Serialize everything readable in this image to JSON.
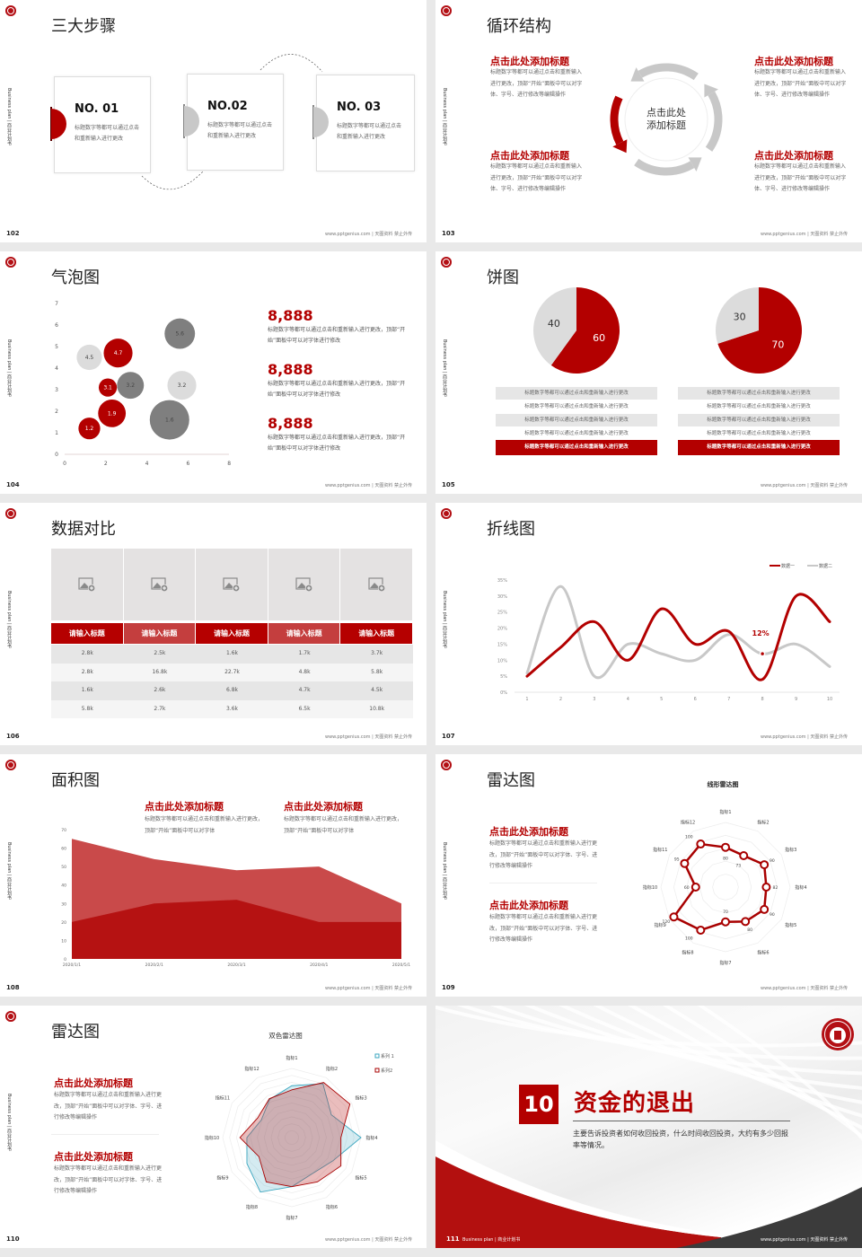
{
  "common": {
    "side_text": "Business plan | 商业计划书",
    "footer": "www.pptgenius.com | 天图资料 禁止外传",
    "logo_icon": "seal-logo",
    "colors": {
      "accent": "#b30000",
      "light_gray": "#dcdcdc",
      "gray": "#c8c8c8",
      "dark_gray": "#7f7f7f",
      "teal": "#3aa6bf",
      "area_light": "#c94a4a",
      "area_dark": "#b51212"
    }
  },
  "slides": {
    "s102": {
      "page": "102",
      "title": "三大步骤",
      "steps": [
        {
          "no": "NO. 01",
          "text": "标题数字等都可以通过点击和重新输入进行更改"
        },
        {
          "no": "NO.02",
          "text": "标题数字等都可以通过点击和重新输入进行更改"
        },
        {
          "no": "NO. 03",
          "text": "标题数字等都可以通过点击和重新输入进行更改"
        }
      ]
    },
    "s103": {
      "page": "103",
      "title": "循环结构",
      "center": "点击此处添加标题",
      "blocks": [
        {
          "heading": "点击此处添加标题",
          "text": "标题数字等都可以通过点击和重新输入进行更改，顶部“开始”面板中可以对字体、字号、进行修改等编辑操作"
        },
        {
          "heading": "点击此处添加标题",
          "text": "标题数字等都可以通过点击和重新输入进行更改，顶部“开始”面板中可以对字体、字号、进行修改等编辑操作"
        },
        {
          "heading": "点击此处添加标题",
          "text": "标题数字等都可以通过点击和重新输入进行更改，顶部“开始”面板中可以对字体、字号、进行修改等编辑操作"
        },
        {
          "heading": "点击此处添加标题",
          "text": "标题数字等都可以通过点击和重新输入进行更改，顶部“开始”面板中可以对字体、字号、进行修改等编辑操作"
        }
      ]
    },
    "s104": {
      "page": "104",
      "title": "气泡图",
      "stats": [
        {
          "value": "8,888",
          "text": "标题数字等都可以通过点击和重新输入进行更改，顶部“开始”面板中可以对字体进行修改"
        },
        {
          "value": "8,888",
          "text": "标题数字等都可以通过点击和重新输入进行更改，顶部“开始”面板中可以对字体进行修改"
        },
        {
          "value": "8,888",
          "text": "标题数字等都可以通过点击和重新输入进行更改，顶部“开始”面板中可以对字体进行修改"
        }
      ]
    },
    "s105": {
      "page": "105",
      "title": "饼图",
      "lists": [
        {
          "rows": [
            "标题数字等都可以通过点击和重新输入进行更改",
            "标题数字等都可以通过点击和重新输入进行更改",
            "标题数字等都可以通过点击和重新输入进行更改",
            "标题数字等都可以通过点击和重新输入进行更改"
          ],
          "highlight": "标题数字等都可以通过点击和重新输入进行更改"
        },
        {
          "rows": [
            "标题数字等都可以通过点击和重新输入进行更改",
            "标题数字等都可以通过点击和重新输入进行更改",
            "标题数字等都可以通过点击和重新输入进行更改",
            "标题数字等都可以通过点击和重新输入进行更改"
          ],
          "highlight": "标题数字等都可以通过点击和重新输入进行更改"
        }
      ]
    },
    "s106": {
      "page": "106",
      "title": "数据对比",
      "image_icon": "image-placeholder-icon",
      "headers": [
        "请输入标题",
        "请输入标题",
        "请输入标题",
        "请输入标题",
        "请输入标题"
      ],
      "rows": [
        [
          "2.8k",
          "2.5k",
          "1.6k",
          "1.7k",
          "3.7k"
        ],
        [
          "2.8k",
          "16.8k",
          "22.7k",
          "4.8k",
          "5.8k"
        ],
        [
          "1.6k",
          "2.6k",
          "6.8k",
          "4.7k",
          "4.5k"
        ],
        [
          "5.8k",
          "2.7k",
          "3.6k",
          "6.5k",
          "10.8k"
        ]
      ]
    },
    "s107": {
      "page": "107",
      "title": "折线图"
    },
    "s108": {
      "page": "108",
      "title": "面积图",
      "blocks": [
        {
          "heading": "点击此处添加标题",
          "text": "标题数字等都可以通过点击和重新输入进行更改，顶部“开始”面板中可以对字体"
        },
        {
          "heading": "点击此处添加标题",
          "text": "标题数字等都可以通过点击和重新输入进行更改，顶部“开始”面板中可以对字体"
        }
      ]
    },
    "s109": {
      "page": "109",
      "title": "雷达图",
      "blocks": [
        {
          "heading": "点击此处添加标题",
          "text": "标题数字等都可以通过点击和重新输入进行更改，顶部“开始”面板中可以对字体、字号、进行修改等编辑操作"
        },
        {
          "heading": "点击此处添加标题",
          "text": "标题数字等都可以通过点击和重新输入进行更改，顶部“开始”面板中可以对字体、字号、进行修改等编辑操作"
        }
      ]
    },
    "s110": {
      "page": "110",
      "title": "雷达图",
      "blocks": [
        {
          "heading": "点击此处添加标题",
          "text": "标题数字等都可以通过点击和重新输入进行更改，顶部“开始”面板中可以对字体、字号、进行修改等编辑操作"
        },
        {
          "heading": "点击此处添加标题",
          "text": "标题数字等都可以通过点击和重新输入进行更改，顶部“开始”面板中可以对字体、字号、进行修改等编辑操作"
        }
      ]
    },
    "s111": {
      "page": "111",
      "section_number": "10",
      "section_title": "资金的退出",
      "description": "主要告诉投资者如何收回投资，什么时间收回投资，大约有多少回报率等情况。"
    }
  },
  "chart_data": [
    {
      "slide": "104",
      "type": "scatter",
      "subtype": "bubble",
      "xlim": [
        0,
        8
      ],
      "ylim": [
        0,
        7
      ],
      "x_ticks": [
        "0",
        "2",
        "4",
        "6",
        "8"
      ],
      "y_ticks": [
        "0",
        "1",
        "2",
        "3",
        "4",
        "5",
        "6",
        "7"
      ],
      "points": [
        {
          "x": 1.2,
          "y": 1.2,
          "size": 5.5,
          "label": "1.2",
          "color": "red"
        },
        {
          "x": 2.3,
          "y": 1.9,
          "size": 7.0,
          "label": "1.9",
          "color": "red"
        },
        {
          "x": 2.1,
          "y": 3.1,
          "size": 4.6,
          "label": "3.1",
          "color": "red"
        },
        {
          "x": 2.6,
          "y": 4.7,
          "size": 7.3,
          "label": "4.7",
          "color": "red"
        },
        {
          "x": 1.2,
          "y": 4.5,
          "size": 6.4,
          "label": "4.5",
          "color": "light_gray"
        },
        {
          "x": 3.2,
          "y": 3.2,
          "size": 6.8,
          "label": "3.2",
          "color": "dark_gray"
        },
        {
          "x": 5.7,
          "y": 3.2,
          "size": 7.3,
          "label": "3.2",
          "color": "light_gray"
        },
        {
          "x": 5.6,
          "y": 5.6,
          "size": 7.7,
          "label": "5.6",
          "color": "dark_gray"
        },
        {
          "x": 5.1,
          "y": 1.6,
          "size": 10.0,
          "label": "1.6",
          "color": "dark_gray"
        }
      ]
    },
    {
      "slide": "105",
      "type": "pie",
      "pies": [
        {
          "slices": [
            {
              "value": 60,
              "label": "60",
              "color": "red"
            },
            {
              "value": 40,
              "label": "40",
              "color": "light_gray"
            }
          ]
        },
        {
          "slices": [
            {
              "value": 70,
              "label": "70",
              "color": "red"
            },
            {
              "value": 30,
              "label": "30",
              "color": "light_gray"
            }
          ]
        }
      ]
    },
    {
      "slide": "107",
      "type": "line",
      "smooth": true,
      "x": [
        "1",
        "2",
        "3",
        "4",
        "5",
        "6",
        "7",
        "8",
        "9",
        "10"
      ],
      "y_ticks": [
        "0%",
        "5%",
        "10%",
        "15%",
        "20%",
        "25%",
        "30%",
        "35%"
      ],
      "ylim": [
        0,
        35
      ],
      "legend": "top-right",
      "series": [
        {
          "name": "数据一",
          "values": [
            5,
            14,
            22,
            10,
            26,
            15,
            19,
            4,
            30,
            22
          ],
          "color": "red"
        },
        {
          "name": "数据二",
          "values": [
            6,
            33,
            5,
            15,
            12,
            10,
            18,
            12,
            15,
            8
          ],
          "color": "gray"
        }
      ],
      "annotation": {
        "x": "8",
        "value": 12,
        "label": "12%"
      }
    },
    {
      "slide": "108",
      "type": "area",
      "categories": [
        "2020/1/1",
        "2020/2/1",
        "2020/3/1",
        "2020/4/1",
        "2020/5/1"
      ],
      "y_ticks": [
        "0",
        "10",
        "20",
        "30",
        "40",
        "50",
        "60",
        "70"
      ],
      "ylim": [
        0,
        70
      ],
      "series": [
        {
          "values": [
            65,
            54,
            48,
            50,
            30
          ],
          "color": "area_light"
        },
        {
          "values": [
            20,
            30,
            32,
            20,
            20
          ],
          "color": "area_dark"
        }
      ]
    },
    {
      "slide": "109",
      "type": "radar",
      "title": "线形雷达图",
      "axes": [
        "指标1",
        "指标2",
        "指标3",
        "指标4",
        "指标5",
        "指标6",
        "指标7",
        "指标8",
        "指标9",
        "指标10",
        "指标11",
        "指标12"
      ],
      "series": [
        {
          "values": [
            80,
            73,
            90,
            82,
            90,
            80,
            70,
            100,
            120,
            60,
            95,
            100
          ],
          "labels": [
            "80",
            "73",
            "90",
            "82",
            "90",
            "80",
            "70",
            "100",
            "120",
            "60",
            "95",
            "100"
          ]
        }
      ],
      "rmax": 130
    },
    {
      "slide": "110",
      "type": "radar",
      "title": "双色雷达图",
      "axes": [
        "指标1",
        "指标2",
        "指标3",
        "指标4",
        "指标5",
        "指标6",
        "指标7",
        "指标8",
        "指标9",
        "指标10",
        "指标11",
        "指标12"
      ],
      "legend": "top-right",
      "series": [
        {
          "name": "系列 1",
          "values": [
            75,
            90,
            66,
            100,
            68,
            60,
            71,
            91,
            75,
            65,
            51,
            64
          ],
          "color": "teal"
        },
        {
          "name": "系列2",
          "values": [
            69,
            92,
            97,
            71,
            82,
            74,
            71,
            74,
            55,
            75,
            57,
            65
          ],
          "color": "red"
        }
      ],
      "rmax": 100
    }
  ]
}
